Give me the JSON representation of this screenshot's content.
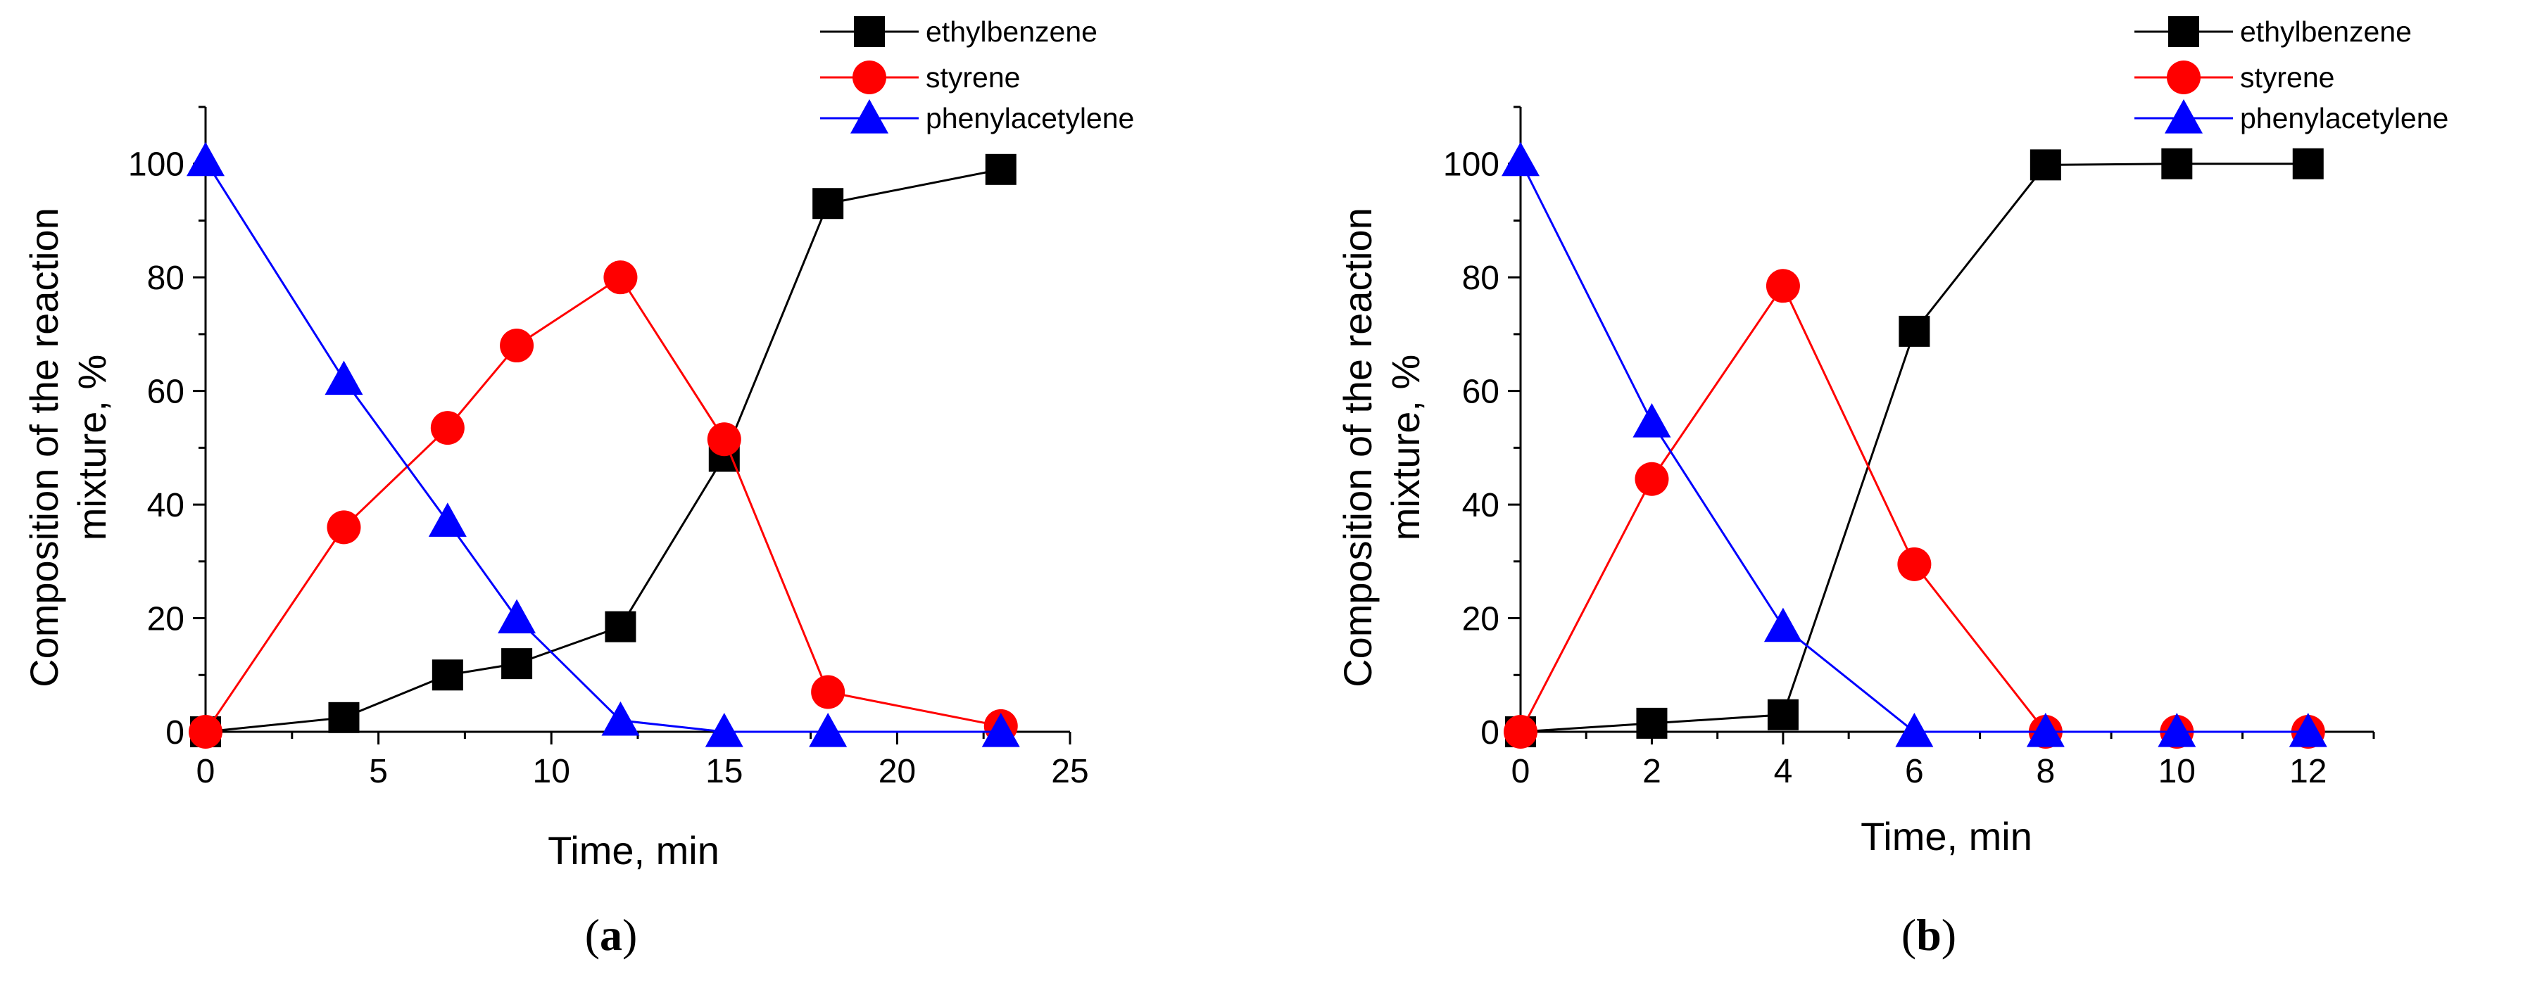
{
  "colors": {
    "ethylbenzene": "#000000",
    "styrene": "#ff0000",
    "phenylacetylene": "#0000ff"
  },
  "chart_data": [
    {
      "type": "line",
      "panel_label": "a",
      "xlabel": "Time, min",
      "ylabel_line1": "Composition of the reaction",
      "ylabel_line2": "mixture, %",
      "xlim": [
        0,
        25
      ],
      "ylim": [
        0,
        110
      ],
      "xticks": [
        0,
        5,
        10,
        15,
        20,
        25
      ],
      "yticks": [
        0,
        20,
        40,
        60,
        80,
        100
      ],
      "series": [
        {
          "name": "ethylbenzene",
          "marker": "square",
          "x": [
            0,
            4,
            7,
            9,
            12,
            15,
            18,
            23
          ],
          "values": [
            0,
            2.5,
            10,
            12,
            18.5,
            48.5,
            93,
            99
          ]
        },
        {
          "name": "styrene",
          "marker": "circle",
          "x": [
            0,
            4,
            7,
            9,
            12,
            15,
            18,
            23
          ],
          "values": [
            0,
            36,
            53.5,
            68,
            80,
            51.5,
            7,
            1
          ]
        },
        {
          "name": "phenylacetylene",
          "marker": "triangle",
          "x": [
            0,
            4,
            7,
            9,
            12,
            15,
            18,
            23
          ],
          "values": [
            100.5,
            62,
            37,
            20,
            2,
            0,
            0,
            0
          ]
        }
      ]
    },
    {
      "type": "line",
      "panel_label": "b",
      "xlabel": "Time, min",
      "ylabel_line1": "Composition of the reaction",
      "ylabel_line2": "mixture, %",
      "xlim": [
        0,
        13
      ],
      "ylim": [
        0,
        110
      ],
      "xticks": [
        0,
        2,
        4,
        6,
        8,
        10,
        12
      ],
      "yticks": [
        0,
        20,
        40,
        60,
        80,
        100
      ],
      "series": [
        {
          "name": "ethylbenzene",
          "marker": "square",
          "x": [
            0,
            2,
            4,
            6,
            8,
            10,
            12
          ],
          "values": [
            0,
            1.5,
            3,
            70.5,
            99.8,
            100,
            100
          ]
        },
        {
          "name": "styrene",
          "marker": "circle",
          "x": [
            0,
            2,
            4,
            6,
            8,
            10,
            12
          ],
          "values": [
            0,
            44.5,
            78.5,
            29.5,
            0,
            0,
            0
          ]
        },
        {
          "name": "phenylacetylene",
          "marker": "triangle",
          "x": [
            0,
            2,
            4,
            6,
            8,
            10,
            12
          ],
          "values": [
            100.5,
            54.5,
            18.5,
            0,
            0,
            0,
            0
          ]
        }
      ]
    }
  ]
}
